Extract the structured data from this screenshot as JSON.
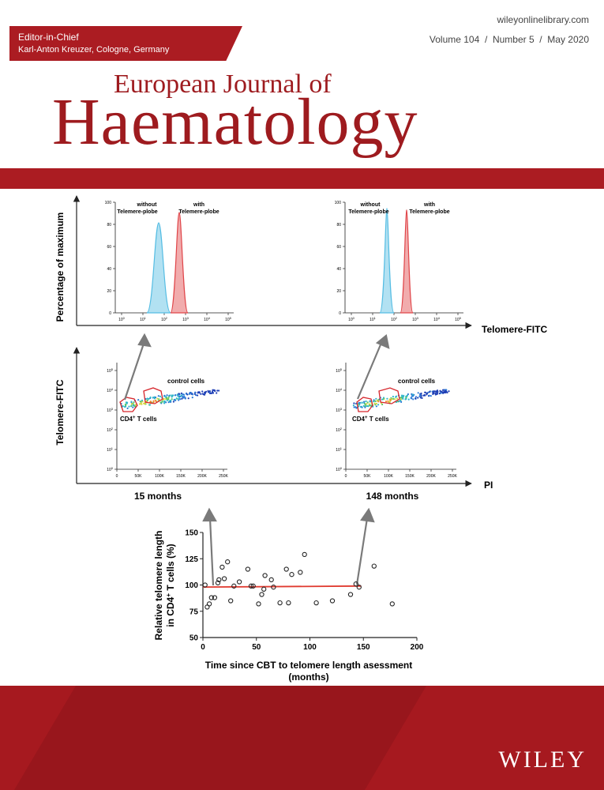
{
  "header": {
    "editor_label": "Editor-in-Chief",
    "editor_name": "Karl-Anton Kreuzer, Cologne, Germany",
    "site_url": "wileyonlinelibrary.com",
    "issue_line": "Volume 104  /  Number 5  /  May 2020"
  },
  "journal": {
    "title_line1": "European Journal of",
    "title_line2": "Haematology"
  },
  "publisher": "WILEY",
  "figure": {
    "hist_y_label": "Percentage of maximum",
    "hist_x_label": "Telomere-FITC",
    "hist_ticks_y": [
      "0",
      "20",
      "40",
      "60",
      "80",
      "100"
    ],
    "hist_ticks_x": [
      "10",
      "10",
      "10",
      "10",
      "10",
      "10"
    ],
    "hist_tick_exps": [
      "0",
      "1",
      "2",
      "3",
      "4",
      "5"
    ],
    "hist_without_label": [
      "without",
      "Telemere-plobe"
    ],
    "hist_with_label": [
      "with",
      "Telemere-plobe"
    ],
    "scatter_y_label": "Telomere-FITC",
    "scatter_x_label": "PI",
    "scatter_ticks_x": [
      "0",
      "50K",
      "100K",
      "150K",
      "200K",
      "250K"
    ],
    "scatter_ticks_y_base": "10",
    "scatter_ticks_y_exps": [
      "0",
      "1",
      "2",
      "3",
      "4",
      "5"
    ],
    "control_label": "control cells",
    "cd4_label": "CD4",
    "cd4_sup": "+",
    "cd4_suffix": " T cells",
    "left_time": "15 months",
    "right_time": "148 months"
  },
  "chart_data": {
    "type": "scatter",
    "title": "",
    "xlabel_line1": "Time since CBT to telomere length asessment",
    "xlabel_line2": "(months)",
    "ylabel_line1": "Relative telomere length",
    "ylabel_line2": "in CD4",
    "ylabel_sup": "+",
    "ylabel_line2_rest": " T cells (%)",
    "xlim": [
      0,
      200
    ],
    "ylim": [
      50,
      150
    ],
    "x_ticks": [
      0,
      50,
      100,
      150,
      200
    ],
    "y_ticks": [
      50,
      75,
      100,
      125,
      150
    ],
    "trend_line": {
      "x": [
        0,
        148
      ],
      "y": [
        98,
        99
      ]
    },
    "points": [
      {
        "x": 2,
        "y": 100
      },
      {
        "x": 4,
        "y": 79
      },
      {
        "x": 6,
        "y": 82
      },
      {
        "x": 8,
        "y": 88
      },
      {
        "x": 11,
        "y": 88
      },
      {
        "x": 14,
        "y": 102
      },
      {
        "x": 15,
        "y": 105
      },
      {
        "x": 18,
        "y": 117
      },
      {
        "x": 20,
        "y": 106
      },
      {
        "x": 23,
        "y": 122
      },
      {
        "x": 26,
        "y": 85
      },
      {
        "x": 29,
        "y": 99
      },
      {
        "x": 34,
        "y": 103
      },
      {
        "x": 42,
        "y": 115
      },
      {
        "x": 45,
        "y": 99
      },
      {
        "x": 47,
        "y": 99
      },
      {
        "x": 52,
        "y": 82
      },
      {
        "x": 55,
        "y": 91
      },
      {
        "x": 57,
        "y": 96
      },
      {
        "x": 58,
        "y": 109
      },
      {
        "x": 64,
        "y": 105
      },
      {
        "x": 66,
        "y": 98
      },
      {
        "x": 72,
        "y": 83
      },
      {
        "x": 78,
        "y": 115
      },
      {
        "x": 80,
        "y": 83
      },
      {
        "x": 83,
        "y": 110
      },
      {
        "x": 91,
        "y": 112
      },
      {
        "x": 95,
        "y": 129
      },
      {
        "x": 106,
        "y": 83
      },
      {
        "x": 121,
        "y": 85
      },
      {
        "x": 138,
        "y": 91
      },
      {
        "x": 143,
        "y": 101
      },
      {
        "x": 146,
        "y": 98
      },
      {
        "x": 160,
        "y": 118
      },
      {
        "x": 177,
        "y": 82
      }
    ]
  },
  "colors": {
    "brand_red": "#ab1c22",
    "title_red": "#9e1b1f",
    "hist_blue": "#55bde3",
    "hist_red": "#e0464a"
  }
}
